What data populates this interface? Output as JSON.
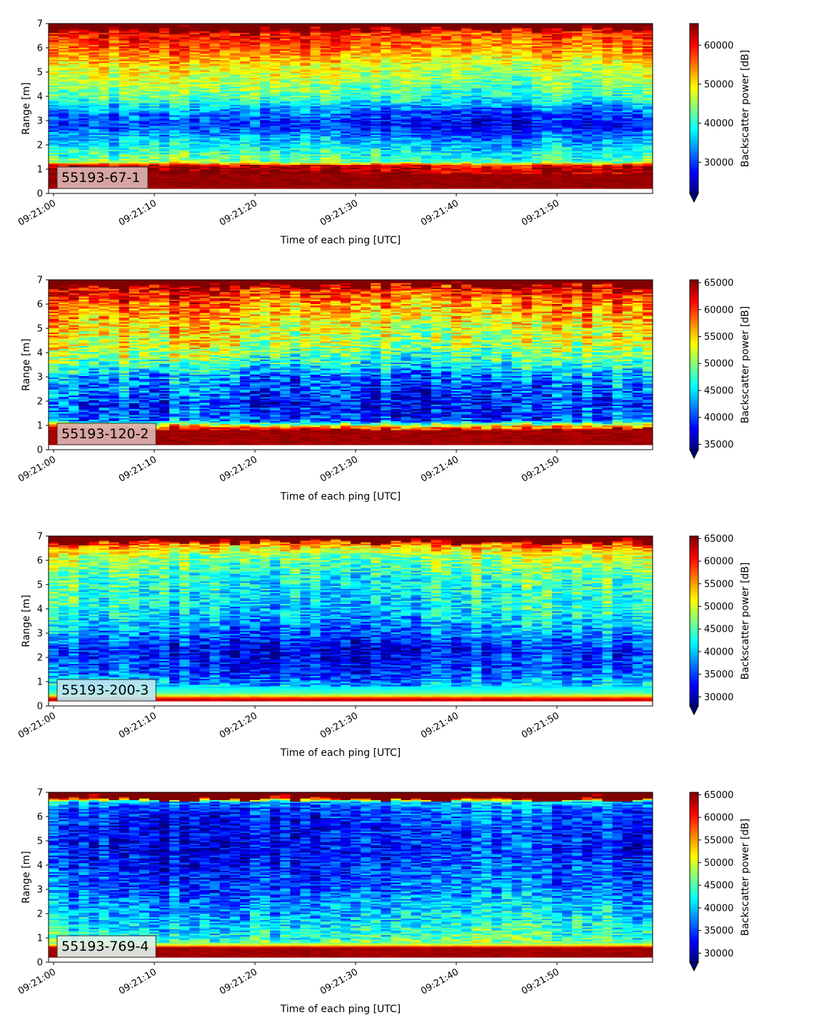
{
  "chart_data": [
    {
      "type": "heatmap",
      "label": "55193-67-1",
      "label_bg": "#dcb2b2",
      "xlabel": "Time of each ping [UTC]",
      "ylabel": "Range [m]",
      "colorbar_label": "Backscatter power [dB]",
      "x_ticks": [
        "09:21:00",
        "09:21:10",
        "09:21:20",
        "09:21:30",
        "09:21:40",
        "09:21:50"
      ],
      "xlim_seconds": [
        -0.5,
        59.5
      ],
      "y_ticks": [
        0,
        1,
        2,
        3,
        4,
        5,
        6,
        7
      ],
      "ylim": [
        0,
        7
      ],
      "colorbar_ticks": [
        30000,
        40000,
        50000,
        60000
      ],
      "vmin": 22000,
      "vmax": 65535,
      "colormap": "jet",
      "profile": [
        {
          "range_m": 0.2,
          "value": 64500
        },
        {
          "range_m": 0.9,
          "value": 64500
        },
        {
          "range_m": 1.15,
          "value": 62000
        },
        {
          "range_m": 1.3,
          "value": 43000
        },
        {
          "range_m": 1.8,
          "value": 38500
        },
        {
          "range_m": 2.3,
          "value": 34000
        },
        {
          "range_m": 2.8,
          "value": 28500
        },
        {
          "range_m": 3.3,
          "value": 31000
        },
        {
          "range_m": 3.9,
          "value": 40000
        },
        {
          "range_m": 4.6,
          "value": 45000
        },
        {
          "range_m": 5.3,
          "value": 48500
        },
        {
          "range_m": 6.0,
          "value": 55000
        },
        {
          "range_m": 6.6,
          "value": 59000
        },
        {
          "range_m": 7.0,
          "value": 65000
        }
      ]
    },
    {
      "type": "heatmap",
      "label": "55193-120-2",
      "label_bg": "#dcb2b2",
      "xlabel": "Time of each ping [UTC]",
      "ylabel": "Range [m]",
      "colorbar_label": "Backscatter power [dB]",
      "x_ticks": [
        "09:21:00",
        "09:21:10",
        "09:21:20",
        "09:21:30",
        "09:21:40",
        "09:21:50"
      ],
      "xlim_seconds": [
        -0.5,
        59.5
      ],
      "y_ticks": [
        0,
        1,
        2,
        3,
        4,
        5,
        6,
        7
      ],
      "ylim": [
        0,
        7
      ],
      "colorbar_ticks": [
        35000,
        40000,
        45000,
        50000,
        55000,
        60000,
        65000
      ],
      "vmin": 34000,
      "vmax": 65535,
      "colormap": "jet",
      "profile": [
        {
          "range_m": 0.2,
          "value": 64500
        },
        {
          "range_m": 0.8,
          "value": 64500
        },
        {
          "range_m": 1.0,
          "value": 54000
        },
        {
          "range_m": 1.2,
          "value": 41000
        },
        {
          "range_m": 1.8,
          "value": 39000
        },
        {
          "range_m": 2.4,
          "value": 40500
        },
        {
          "range_m": 3.0,
          "value": 42000
        },
        {
          "range_m": 3.6,
          "value": 47500
        },
        {
          "range_m": 4.4,
          "value": 52000
        },
        {
          "range_m": 5.2,
          "value": 54000
        },
        {
          "range_m": 6.0,
          "value": 57500
        },
        {
          "range_m": 6.6,
          "value": 61500
        },
        {
          "range_m": 7.0,
          "value": 65000
        }
      ]
    },
    {
      "type": "heatmap",
      "label": "55193-200-3",
      "label_bg": "#bde6f2",
      "xlabel": "Time of each ping [UTC]",
      "ylabel": "Range [m]",
      "colorbar_label": "Backscatter power [dB]",
      "x_ticks": [
        "09:21:00",
        "09:21:10",
        "09:21:20",
        "09:21:30",
        "09:21:40",
        "09:21:50"
      ],
      "xlim_seconds": [
        -0.5,
        59.5
      ],
      "y_ticks": [
        0,
        1,
        2,
        3,
        4,
        5,
        6,
        7
      ],
      "ylim": [
        0,
        7
      ],
      "colorbar_ticks": [
        30000,
        35000,
        40000,
        45000,
        50000,
        55000,
        60000,
        65000
      ],
      "vmin": 28000,
      "vmax": 65535,
      "colormap": "jet",
      "profile": [
        {
          "range_m": 0.05,
          "value": 64000
        },
        {
          "range_m": 0.3,
          "value": 62000
        },
        {
          "range_m": 0.5,
          "value": 46000
        },
        {
          "range_m": 1.0,
          "value": 38000
        },
        {
          "range_m": 1.6,
          "value": 34500
        },
        {
          "range_m": 2.3,
          "value": 33000
        },
        {
          "range_m": 3.0,
          "value": 37000
        },
        {
          "range_m": 3.8,
          "value": 41000
        },
        {
          "range_m": 4.6,
          "value": 42500
        },
        {
          "range_m": 5.4,
          "value": 44000
        },
        {
          "range_m": 6.2,
          "value": 48500
        },
        {
          "range_m": 6.6,
          "value": 55000
        },
        {
          "range_m": 7.0,
          "value": 65000
        }
      ]
    },
    {
      "type": "heatmap",
      "label": "55193-769-4",
      "label_bg": "#dff2ea",
      "xlabel": "Time of each ping [UTC]",
      "ylabel": "Range [m]",
      "colorbar_label": "Backscatter power [dB]",
      "x_ticks": [
        "09:21:00",
        "09:21:10",
        "09:21:20",
        "09:21:30",
        "09:21:40",
        "09:21:50"
      ],
      "xlim_seconds": [
        -0.5,
        59.5
      ],
      "y_ticks": [
        0,
        1,
        2,
        3,
        4,
        5,
        6,
        7
      ],
      "ylim": [
        0,
        7
      ],
      "colorbar_ticks": [
        30000,
        35000,
        40000,
        45000,
        50000,
        55000,
        60000,
        65000
      ],
      "vmin": 28000,
      "vmax": 65535,
      "colormap": "jet",
      "profile": [
        {
          "range_m": 0.2,
          "value": 64500
        },
        {
          "range_m": 0.6,
          "value": 64000
        },
        {
          "range_m": 0.75,
          "value": 48000
        },
        {
          "range_m": 1.0,
          "value": 44000
        },
        {
          "range_m": 1.6,
          "value": 41500
        },
        {
          "range_m": 2.2,
          "value": 39500
        },
        {
          "range_m": 3.0,
          "value": 36500
        },
        {
          "range_m": 3.8,
          "value": 35000
        },
        {
          "range_m": 4.6,
          "value": 33500
        },
        {
          "range_m": 5.4,
          "value": 33500
        },
        {
          "range_m": 6.2,
          "value": 35000
        },
        {
          "range_m": 6.6,
          "value": 39000
        },
        {
          "range_m": 6.8,
          "value": 65000
        },
        {
          "range_m": 7.0,
          "value": 65000
        }
      ]
    }
  ]
}
